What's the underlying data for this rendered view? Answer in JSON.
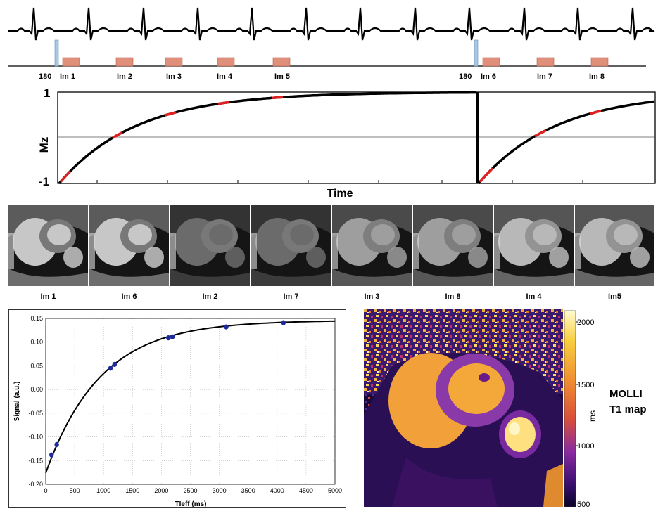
{
  "sequence": {
    "pulse_labels": [
      "180",
      "180"
    ],
    "image_labels": [
      "Im 1",
      "Im 2",
      "Im 3",
      "Im 4",
      "Im 5",
      "Im 6",
      "Im 7",
      "Im 8"
    ],
    "colors": {
      "pulse": "#a7c7e7",
      "readout": "#e0907a",
      "ecg": "#000000"
    }
  },
  "mz_plot": {
    "ylabel": "Mz",
    "xlabel": "Time",
    "ytick_top": "1",
    "ytick_bottom": "-1",
    "highlight_color": "#e02020"
  },
  "images_row": {
    "captions": [
      "Im 1",
      "Im 6",
      "Im 2",
      "Im 7",
      "Im 3",
      "Im 8",
      "Im 4",
      "Im5"
    ],
    "brightness": [
      0.78,
      0.78,
      0.42,
      0.42,
      0.62,
      0.62,
      0.72,
      0.72
    ]
  },
  "chart_data": {
    "type": "scatter",
    "xlabel": "TIeff (ms)",
    "ylabel": "Signal (a.u.)",
    "xlim": [
      0,
      5000
    ],
    "ylim": [
      -0.2,
      0.15
    ],
    "xticks": [
      "0",
      "500",
      "1000",
      "1500",
      "2000",
      "2500",
      "3000",
      "3500",
      "4000",
      "4500",
      "5000"
    ],
    "yticks": [
      "0.15",
      "0.10",
      "0.05",
      "0.00",
      "-0.05",
      "-0.10",
      "-0.15",
      "-0.20"
    ],
    "points": {
      "x": [
        100,
        190,
        1120,
        1190,
        2120,
        2190,
        3120,
        4110
      ],
      "y": [
        -0.138,
        -0.116,
        0.045,
        0.053,
        0.109,
        0.111,
        0.132,
        0.141
      ]
    },
    "fit": {
      "A": 0.146,
      "B": 0.322,
      "T1": 950
    },
    "grid": true,
    "colors": {
      "points": "#1f2a9c",
      "fit": "#000000"
    }
  },
  "t1map": {
    "colorbar_ticks": [
      "2000",
      "1500",
      "1000",
      "500"
    ],
    "unit": "ms",
    "title_line1": "MOLLI",
    "title_line2": "T1 map"
  }
}
